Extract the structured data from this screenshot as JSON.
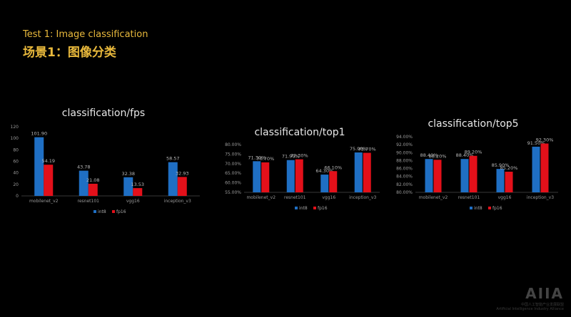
{
  "slide": {
    "title_en": "Test 1: Image classification",
    "title_zh": "场景1：图像分类",
    "accent_color": "#e9b93c"
  },
  "watermark": {
    "logo": "AIIA",
    "text": "中国人工智能产业发展联盟",
    "text_en": "Artificial Intelligence Industry Alliance"
  },
  "colors": {
    "int8": "#1f6fc4",
    "fp16": "#e3101a"
  },
  "chart_data": [
    {
      "type": "bar",
      "title": "classification/fps",
      "categories": [
        "mobilenet_v2",
        "resnet101",
        "vgg16",
        "inception_v3"
      ],
      "series": [
        {
          "name": "int8",
          "values": [
            101.9,
            43.78,
            32.38,
            58.57
          ],
          "labels": [
            "101.90",
            "43.78",
            "32.38",
            "58.57"
          ]
        },
        {
          "name": "fp16",
          "values": [
            54.19,
            21.08,
            13.53,
            32.93
          ],
          "labels": [
            "54.19",
            "21.08",
            "13.53",
            "32.93"
          ]
        }
      ],
      "ylim": [
        0,
        120
      ],
      "yticks": [
        0,
        20,
        40,
        60,
        80,
        100,
        120
      ],
      "ytick_labels": [
        "0",
        "20",
        "40",
        "60",
        "80",
        "100",
        "120"
      ],
      "legend": "bottom",
      "grid": false
    },
    {
      "type": "bar",
      "title": "classification/top1",
      "categories": [
        "mobilenet_v2",
        "resnet101",
        "vgg16",
        "inception_v3"
      ],
      "series": [
        {
          "name": "int8",
          "values": [
            71.3,
            71.9,
            64.3,
            75.9
          ],
          "labels": [
            "71.30%",
            "71.90%",
            "64.30%",
            "75.90%"
          ]
        },
        {
          "name": "fp16",
          "values": [
            70.7,
            72.3,
            66.1,
            75.7
          ],
          "labels": [
            "70.70%",
            "72.30%",
            "66.10%",
            "75.70%"
          ]
        }
      ],
      "ylim": [
        55,
        80
      ],
      "yticks": [
        55,
        60,
        65,
        70,
        75,
        80
      ],
      "ytick_labels": [
        "55.00%",
        "60.00%",
        "65.00%",
        "70.00%",
        "75.00%",
        "80.00%"
      ],
      "legend": "bottom",
      "grid": false
    },
    {
      "type": "bar",
      "title": "classification/top5",
      "categories": [
        "mobilenet_v2",
        "resnet101",
        "vgg16",
        "inception_v3"
      ],
      "series": [
        {
          "name": "int8",
          "values": [
            88.4,
            88.4,
            85.9,
            91.5
          ],
          "labels": [
            "88.40%",
            "88.40%",
            "85.90%",
            "91.50%"
          ]
        },
        {
          "name": "fp16",
          "values": [
            88.2,
            89.2,
            85.2,
            92.3
          ],
          "labels": [
            "88.20%",
            "89.20%",
            "85.20%",
            "92.30%"
          ]
        }
      ],
      "ylim": [
        80,
        94
      ],
      "yticks": [
        80,
        82,
        84,
        86,
        88,
        90,
        92,
        94
      ],
      "ytick_labels": [
        "80.00%",
        "82.00%",
        "84.00%",
        "86.00%",
        "88.00%",
        "90.00%",
        "92.00%",
        "94.00%"
      ],
      "legend": "bottom",
      "grid": false
    }
  ]
}
